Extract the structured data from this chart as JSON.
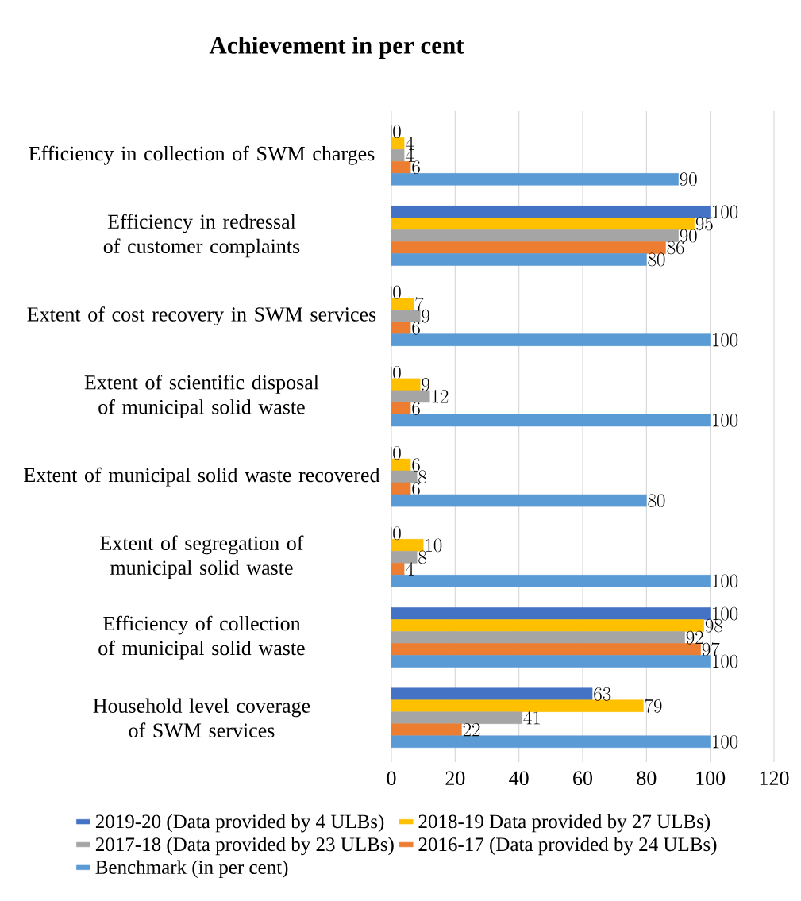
{
  "chart_data": {
    "type": "bar",
    "orientation": "horizontal",
    "title": "Achievement in per cent",
    "categories": [
      "Efficiency in collection of SWM charges",
      "Efficiency in redressal of customer complaints",
      "Extent of cost recovery in SWM services",
      "Extent of scientific disposal of municipal solid waste",
      "Extent of municipal solid waste recovered",
      "Extent of segregation of municipal solid waste",
      "Efficiency of collection of municipal solid waste",
      "Household level coverage of SWM services"
    ],
    "series": [
      {
        "name": "2019-20 (Data provided by 4 ULBs)",
        "color": "#4472c4",
        "values": [
          0,
          100,
          0,
          0,
          0,
          0,
          100,
          63
        ]
      },
      {
        "name": "2018-19 Data provided by 27 ULBs)",
        "color": "#ffc000",
        "values": [
          4,
          95,
          7,
          9,
          6,
          10,
          98,
          79
        ]
      },
      {
        "name": "2017-18 (Data provided by 23 ULBs)",
        "color": "#a5a5a5",
        "values": [
          4,
          90,
          9,
          12,
          8,
          8,
          92,
          41
        ]
      },
      {
        "name": "2016-17 (Data provided by 24 ULBs)",
        "color": "#ed7d31",
        "values": [
          6,
          86,
          6,
          6,
          6,
          4,
          97,
          22
        ]
      },
      {
        "name": "Benchmark (in per cent)",
        "color": "#5b9bd5",
        "values": [
          90,
          80,
          100,
          100,
          80,
          100,
          100,
          100
        ]
      }
    ],
    "xlim": [
      0,
      120
    ],
    "xticks": [
      0,
      20,
      40,
      60,
      80,
      100,
      120
    ],
    "grid": "x",
    "legend": "bottom",
    "data_labels": true
  }
}
